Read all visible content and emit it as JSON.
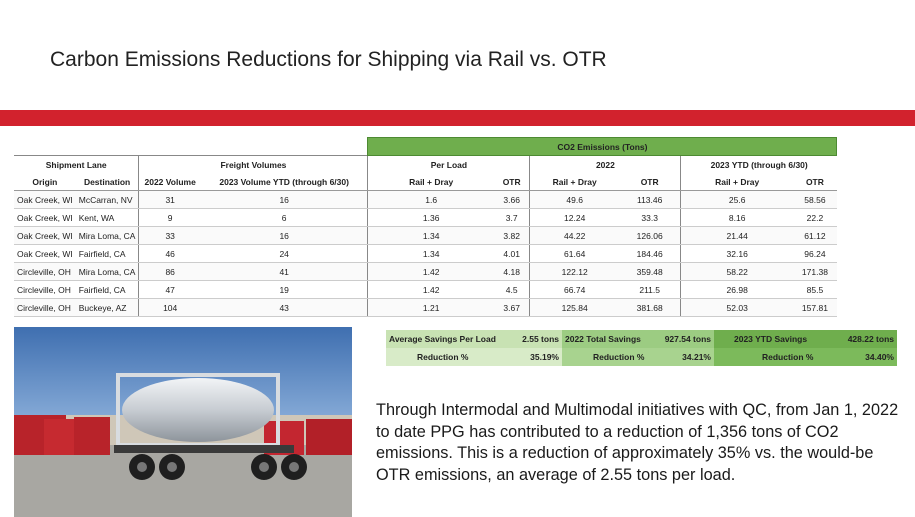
{
  "title": "Carbon Emissions Reductions for Shipping via Rail vs. OTR",
  "table": {
    "co2_header": "CO2 Emissions (Tons)",
    "group_shipment_lane": "Shipment Lane",
    "group_freight_volumes": "Freight Volumes",
    "group_per_load": "Per Load",
    "group_2022": "2022",
    "group_2023": "2023 YTD (through 6/30)",
    "col_origin": "Origin",
    "col_destination": "Destination",
    "col_2022_volume": "2022 Volume",
    "col_2023_volume": "2023 Volume YTD (through 6/30)",
    "col_rail_dray": "Rail + Dray",
    "col_otr": "OTR",
    "rows": [
      [
        "Oak Creek, WI",
        "McCarran, NV",
        "31",
        "16",
        "1.6",
        "3.66",
        "49.6",
        "113.46",
        "25.6",
        "58.56"
      ],
      [
        "Oak Creek, WI",
        "Kent, WA",
        "9",
        "6",
        "1.36",
        "3.7",
        "12.24",
        "33.3",
        "8.16",
        "22.2"
      ],
      [
        "Oak Creek, WI",
        "Mira Loma, CA",
        "33",
        "16",
        "1.34",
        "3.82",
        "44.22",
        "126.06",
        "21.44",
        "61.12"
      ],
      [
        "Oak Creek, WI",
        "Fairfield, CA",
        "46",
        "24",
        "1.34",
        "4.01",
        "61.64",
        "184.46",
        "32.16",
        "96.24"
      ],
      [
        "Circleville, OH",
        "Mira Loma, CA",
        "86",
        "41",
        "1.42",
        "4.18",
        "122.12",
        "359.48",
        "58.22",
        "171.38"
      ],
      [
        "Circleville, OH",
        "Fairfield, CA",
        "47",
        "19",
        "1.42",
        "4.5",
        "66.74",
        "211.5",
        "26.98",
        "85.5"
      ],
      [
        "Circleville, OH",
        "Buckeye, AZ",
        "104",
        "43",
        "1.21",
        "3.67",
        "125.84",
        "381.68",
        "52.03",
        "157.81"
      ]
    ]
  },
  "summary": {
    "avg_label": "Average Savings Per Load",
    "avg_value": "2.55 tons",
    "avg_red_label": "Reduction %",
    "avg_red_value": "35.19%",
    "total_label": "2022 Total Savings",
    "total_value": "927.54 tons",
    "total_red_label": "Reduction %",
    "total_red_value": "34.21%",
    "ytd_label": "2023 YTD Savings",
    "ytd_value": "428.22 tons",
    "ytd_red_label": "Reduction %",
    "ytd_red_value": "34.40%"
  },
  "paragraph": "Through Intermodal and Multimodal initiatives with QC, from Jan 1, 2022 to date PPG has contributed to a reduction of 1,356 tons of CO2 emissions. This is a reduction of approximately 35% vs. the would-be OTR emissions, an average of 2.55 tons per load.",
  "colors": {
    "red_bar": "#d2222d",
    "green_header": "#6fae4d",
    "light_green": "#c8e2b3"
  },
  "photo_icon": "iso-tank-container-truck-photo"
}
